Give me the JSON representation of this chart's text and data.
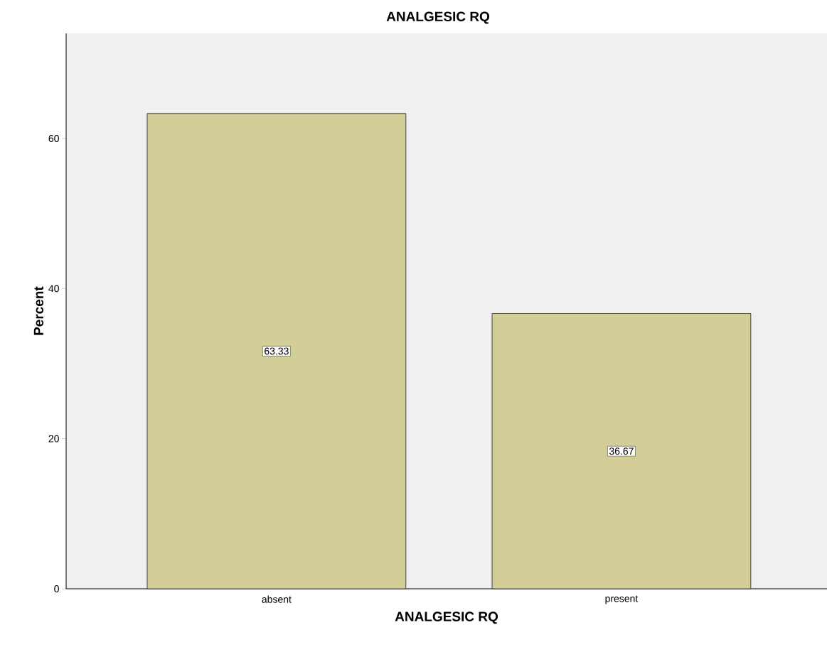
{
  "chart_data": {
    "type": "bar",
    "title": "ANALGESIC RQ",
    "xlabel": "ANALGESIC RQ",
    "ylabel": "Percent",
    "categories": [
      "absent",
      "present"
    ],
    "values": [
      63.33,
      36.67
    ],
    "color": "#d3ce97",
    "ylim": [
      0,
      74
    ],
    "yticks": [
      0,
      20,
      40,
      60
    ],
    "data_labels": true,
    "grid": false
  }
}
